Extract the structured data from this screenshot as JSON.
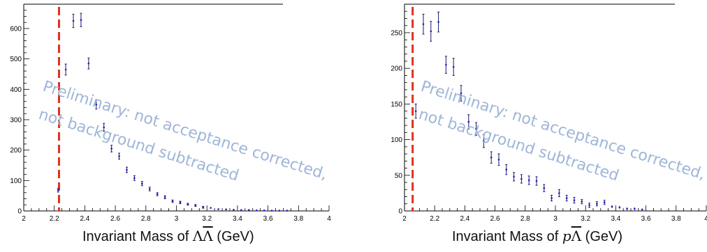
{
  "panels": [
    {
      "id": "left",
      "xlabel_prefix": "Invariant Mass of ",
      "xlabel_symbol_a": "Λ",
      "xlabel_symbol_b": "Λ",
      "xlabel_suffix": "  (GeV)",
      "watermark_line1": "Preliminary: not acceptance corrected,",
      "watermark_line2": "not background subtracted"
    },
    {
      "id": "right",
      "xlabel_prefix": "Invariant Mass of ",
      "xlabel_symbol_a": "p",
      "xlabel_symbol_b": "Λ",
      "xlabel_suffix": "  (GeV)",
      "watermark_line1": "Preliminary: not acceptance corrected,",
      "watermark_line2": "not background subtracted"
    }
  ],
  "colors": {
    "points": "#1a1acc",
    "threshold": "#e0301e",
    "watermark": "#9eb6d8",
    "axis": "#000000"
  },
  "chart_data": [
    {
      "type": "scatter",
      "title": "",
      "xlabel": "Invariant Mass of ΛΛ̄  (GeV)",
      "ylabel": "",
      "xlim": [
        2,
        4
      ],
      "ylim": [
        0,
        680
      ],
      "xticks": [
        2,
        2.2,
        2.4,
        2.6,
        2.8,
        3,
        3.2,
        3.4,
        3.6,
        3.8,
        4
      ],
      "yticks": [
        0,
        100,
        200,
        300,
        400,
        500,
        600
      ],
      "threshold_x": 2.231,
      "grid": false,
      "x": [
        2.225,
        2.275,
        2.325,
        2.375,
        2.425,
        2.475,
        2.525,
        2.575,
        2.625,
        2.675,
        2.725,
        2.775,
        2.825,
        2.875,
        2.925,
        2.975,
        3.025,
        3.075,
        3.125,
        3.175,
        3.225,
        3.275,
        3.325,
        3.375,
        3.425,
        3.475,
        3.525,
        3.575,
        3.625,
        3.675,
        3.725
      ],
      "y": [
        68,
        465,
        625,
        628,
        485,
        350,
        275,
        205,
        180,
        135,
        108,
        90,
        72,
        55,
        45,
        32,
        28,
        22,
        18,
        12,
        10,
        6,
        5,
        4,
        3,
        3,
        2,
        2,
        1,
        1,
        1
      ],
      "err": [
        6,
        18,
        22,
        22,
        18,
        15,
        13,
        11,
        10,
        9,
        8,
        7,
        6,
        5,
        5,
        4,
        4,
        3,
        3,
        3,
        2,
        2,
        2,
        2,
        1,
        1,
        1,
        1,
        1,
        1,
        1
      ],
      "annotations": [
        "Preliminary: not acceptance corrected,",
        "not background subtracted"
      ]
    },
    {
      "type": "scatter",
      "title": "",
      "xlabel": "Invariant Mass of pΛ̄  (GeV)",
      "ylabel": "",
      "xlim": [
        2,
        4
      ],
      "ylim": [
        0,
        290
      ],
      "xticks": [
        2,
        2.2,
        2.4,
        2.6,
        2.8,
        3,
        3.2,
        3.4,
        3.6,
        3.8,
        4
      ],
      "yticks": [
        0,
        50,
        100,
        150,
        200,
        250
      ],
      "threshold_x": 2.054,
      "grid": false,
      "x": [
        2.075,
        2.125,
        2.175,
        2.225,
        2.275,
        2.325,
        2.375,
        2.425,
        2.475,
        2.525,
        2.575,
        2.625,
        2.675,
        2.725,
        2.775,
        2.825,
        2.875,
        2.925,
        2.975,
        3.025,
        3.075,
        3.125,
        3.175,
        3.225,
        3.275,
        3.325,
        3.375,
        3.425,
        3.475,
        3.525,
        3.575
      ],
      "y": [
        140,
        262,
        252,
        265,
        205,
        202,
        165,
        125,
        115,
        98,
        75,
        72,
        58,
        48,
        45,
        43,
        42,
        32,
        18,
        25,
        18,
        15,
        13,
        8,
        10,
        12,
        6,
        5,
        3,
        3,
        2
      ],
      "err": [
        10,
        14,
        14,
        14,
        12,
        12,
        11,
        10,
        9,
        9,
        8,
        8,
        7,
        6,
        6,
        6,
        6,
        5,
        4,
        5,
        4,
        4,
        3,
        3,
        3,
        3,
        2,
        2,
        2,
        2,
        1
      ],
      "annotations": [
        "Preliminary: not acceptance corrected,",
        "not background subtracted"
      ]
    }
  ]
}
